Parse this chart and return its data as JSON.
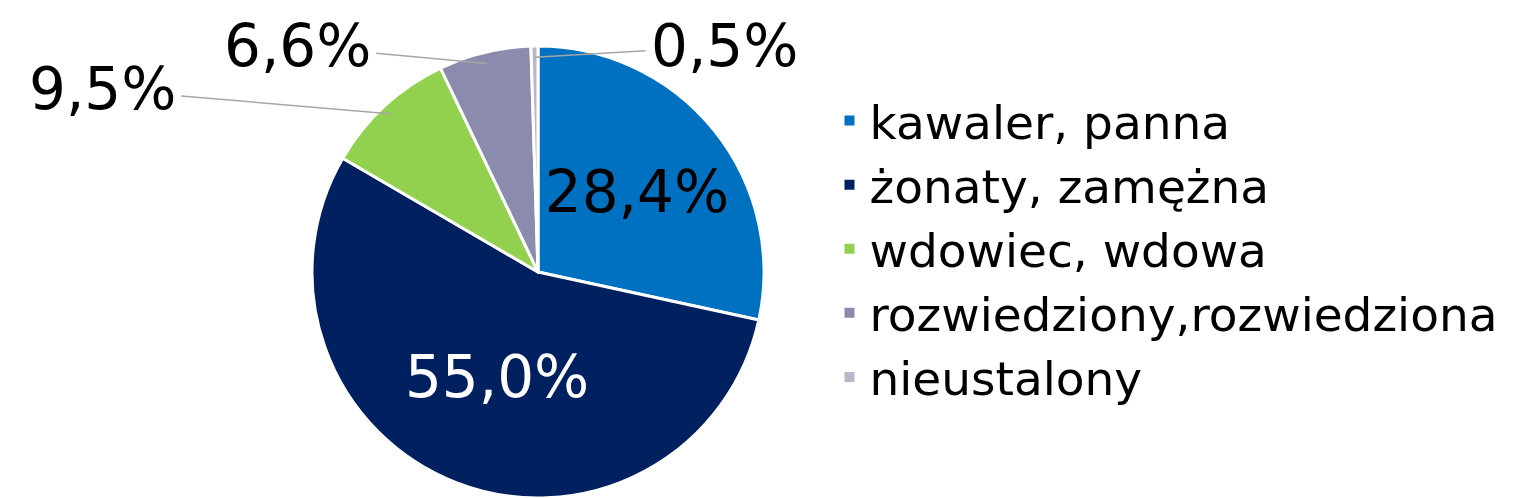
{
  "chart_data": {
    "type": "pie",
    "categories": [
      "kawaler, panna",
      "żonaty, zamężna",
      "wdowiec, wdowa",
      "rozwiedziony,rozwiedziona",
      "nieustalony"
    ],
    "values": [
      28.4,
      55.0,
      9.5,
      6.6,
      0.5
    ],
    "colors": [
      "#0070c0",
      "#002060",
      "#92d050",
      "#8b8bad",
      "#b7b7cc"
    ],
    "value_labels": [
      "28,4%",
      "55,0%",
      "9,5%",
      "6,6%",
      "0,5%"
    ],
    "legend": "right"
  }
}
